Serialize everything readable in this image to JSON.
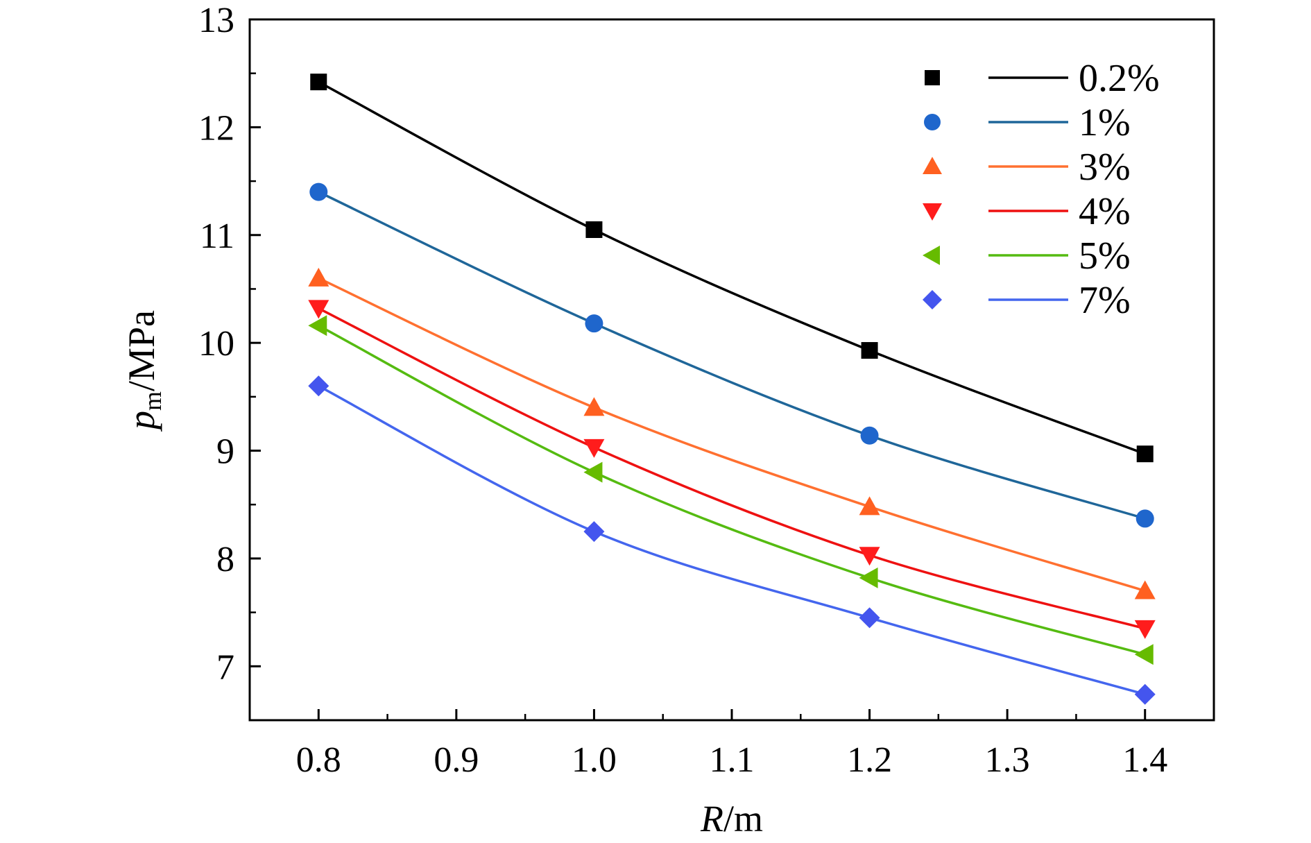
{
  "chart_data": {
    "type": "line",
    "title": "",
    "xlabel": {
      "italic": "R",
      "unit": "/m"
    },
    "ylabel": {
      "italic": "p",
      "subscript": "m",
      "unit": "/MPa"
    },
    "xlim": [
      0.75,
      1.45
    ],
    "ylim": [
      6.5,
      13
    ],
    "xticks": [
      "0.8",
      "0.9",
      "1.0",
      "1.1",
      "1.2",
      "1.3",
      "1.4"
    ],
    "yticks": [
      "7",
      "8",
      "9",
      "10",
      "11",
      "12",
      "13"
    ],
    "x": [
      0.8,
      1.0,
      1.2,
      1.4
    ],
    "legend_position": "top-right",
    "grid": false,
    "series": [
      {
        "name": "0.2%",
        "color": "#000000",
        "marker": "square",
        "values": [
          12.42,
          11.05,
          9.93,
          8.97
        ]
      },
      {
        "name": "1%",
        "color": "#1f66cc",
        "line_color": "#1f6699",
        "marker": "circle",
        "values": [
          11.4,
          10.18,
          9.14,
          8.37
        ]
      },
      {
        "name": "3%",
        "color": "#ff6020",
        "line_color": "#ff7030",
        "marker": "triangle-up",
        "values": [
          10.6,
          9.4,
          8.48,
          7.7
        ]
      },
      {
        "name": "4%",
        "color": "#ff1c1c",
        "line_color": "#ee1111",
        "marker": "triangle-down",
        "values": [
          10.32,
          9.03,
          8.03,
          7.35
        ]
      },
      {
        "name": "5%",
        "color": "#66bb00",
        "line_color": "#55bb11",
        "marker": "triangle-left",
        "values": [
          10.16,
          8.8,
          7.82,
          7.11
        ]
      },
      {
        "name": "7%",
        "color": "#4455ee",
        "line_color": "#4466ee",
        "marker": "diamond",
        "values": [
          9.6,
          8.25,
          7.45,
          6.74
        ]
      }
    ]
  }
}
